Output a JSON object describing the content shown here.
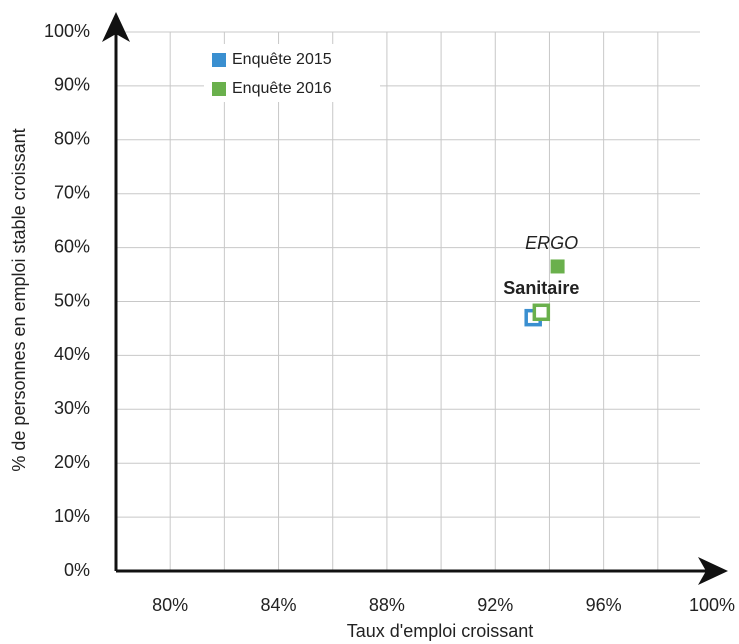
{
  "chart_data": {
    "type": "scatter",
    "xlabel": "Taux d'emploi croissant",
    "ylabel": "% de personnes en emploi stable croissant",
    "xlim": [
      78,
      100
    ],
    "ylim": [
      0,
      100
    ],
    "xticks": [
      {
        "value": 80,
        "label": "80%"
      },
      {
        "value": 84,
        "label": "84%"
      },
      {
        "value": 88,
        "label": "88%"
      },
      {
        "value": 92,
        "label": "92%"
      },
      {
        "value": 96,
        "label": "96%"
      },
      {
        "value": 100,
        "label": "100%"
      }
    ],
    "xminor": [
      82,
      86,
      90,
      94,
      98
    ],
    "yticks": [
      {
        "value": 0,
        "label": "0%"
      },
      {
        "value": 10,
        "label": "10%"
      },
      {
        "value": 20,
        "label": "20%"
      },
      {
        "value": 30,
        "label": "30%"
      },
      {
        "value": 40,
        "label": "40%"
      },
      {
        "value": 50,
        "label": "50%"
      },
      {
        "value": 60,
        "label": "60%"
      },
      {
        "value": 70,
        "label": "70%"
      },
      {
        "value": 80,
        "label": "80%"
      },
      {
        "value": 90,
        "label": "90%"
      },
      {
        "value": 100,
        "label": "100%"
      }
    ],
    "grid": true,
    "legend": "upper left",
    "series": [
      {
        "name": "Enquête 2015",
        "color": "#3a8fd0",
        "x": [
          93.4
        ],
        "values": [
          47
        ],
        "filled": [
          false
        ]
      },
      {
        "name": "Enquête 2016",
        "color": "#6ab04c",
        "x": [
          93.7,
          94.3
        ],
        "values": [
          48,
          56.5
        ],
        "filled": [
          false,
          true
        ]
      }
    ],
    "annotations": [
      {
        "text": "Sanitaire",
        "color": "#222222"
      },
      {
        "text": "ERGO",
        "color": "#6ab04c"
      }
    ]
  }
}
